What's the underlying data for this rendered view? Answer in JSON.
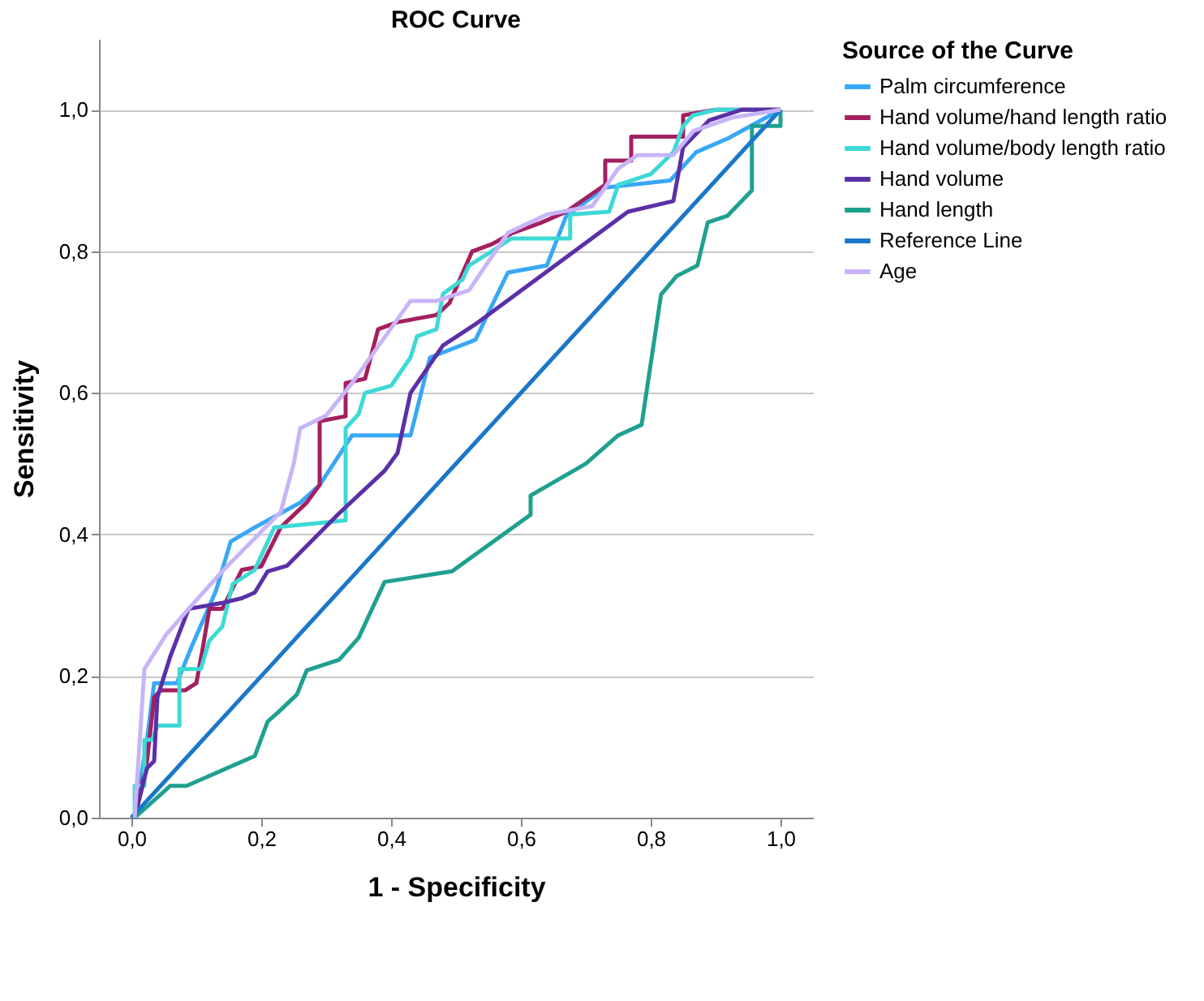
{
  "chart_data": {
    "type": "line",
    "title": "ROC Curve",
    "xlabel": "1 - Specificity",
    "ylabel": "Sensitivity",
    "legend_title": "Source of the Curve",
    "legend": "right",
    "grid": "y",
    "marker": "none",
    "line_style": "solid",
    "xlim": [
      -0.05,
      1.05
    ],
    "ylim": [
      0,
      1.1
    ],
    "xticks": [
      {
        "value": 0,
        "label": "0,0"
      },
      {
        "value": 0.2,
        "label": "0,2"
      },
      {
        "value": 0.4,
        "label": "0,4"
      },
      {
        "value": 0.6,
        "label": "0,6"
      },
      {
        "value": 0.8,
        "label": "0,8"
      },
      {
        "value": 1,
        "label": "1,0"
      }
    ],
    "yticks": [
      {
        "value": 0,
        "label": "0,0"
      },
      {
        "value": 0.2,
        "label": "0,2"
      },
      {
        "value": 0.4,
        "label": "0,4"
      },
      {
        "value": 0.6,
        "label": "0,6"
      },
      {
        "value": 0.8,
        "label": "0,8"
      },
      {
        "value": 1,
        "label": "1,0"
      }
    ],
    "series": [
      {
        "name": "Palm circumference",
        "color": "#38a8f5",
        "x": [
          0.005,
          0.024,
          0.035,
          0.07,
          0.092,
          0.13,
          0.153,
          0.19,
          0.26,
          0.29,
          0.34,
          0.43,
          0.46,
          0.53,
          0.58,
          0.64,
          0.67,
          0.73,
          0.83,
          0.87,
          0.92,
          1.0
        ],
        "values": [
          0,
          0.11,
          0.19,
          0.19,
          0.24,
          0.32,
          0.39,
          0.41,
          0.445,
          0.47,
          0.54,
          0.54,
          0.65,
          0.675,
          0.77,
          0.78,
          0.85,
          0.89,
          0.9,
          0.94,
          0.96,
          1.0
        ]
      },
      {
        "name": "Hand volume/hand length ratio",
        "color": "#a32060",
        "x": [
          0.005,
          0.024,
          0.035,
          0.045,
          0.083,
          0.1,
          0.11,
          0.12,
          0.14,
          0.17,
          0.2,
          0.23,
          0.27,
          0.29,
          0.29,
          0.33,
          0.33,
          0.36,
          0.38,
          0.41,
          0.47,
          0.49,
          0.525,
          0.555,
          0.585,
          0.63,
          0.67,
          0.73,
          0.73,
          0.77,
          0.77,
          0.85,
          0.85,
          0.9,
          1.0
        ],
        "values": [
          0,
          0.08,
          0.17,
          0.18,
          0.18,
          0.19,
          0.24,
          0.295,
          0.295,
          0.35,
          0.355,
          0.41,
          0.445,
          0.47,
          0.56,
          0.567,
          0.614,
          0.62,
          0.69,
          0.7,
          0.71,
          0.727,
          0.8,
          0.81,
          0.825,
          0.84,
          0.856,
          0.894,
          0.928,
          0.928,
          0.962,
          0.962,
          0.992,
          1.0,
          1.0
        ]
      },
      {
        "name": "Hand volume/body length ratio",
        "color": "#3dd9d6",
        "x": [
          0.005,
          0.005,
          0.02,
          0.02,
          0.032,
          0.04,
          0.074,
          0.074,
          0.107,
          0.12,
          0.14,
          0.156,
          0.19,
          0.22,
          0.33,
          0.33,
          0.35,
          0.36,
          0.4,
          0.43,
          0.44,
          0.47,
          0.48,
          0.51,
          0.52,
          0.555,
          0.585,
          0.676,
          0.676,
          0.736,
          0.75,
          0.8,
          0.835,
          0.85,
          0.865,
          0.9,
          1.0
        ],
        "values": [
          0,
          0.045,
          0.045,
          0.11,
          0.11,
          0.13,
          0.13,
          0.21,
          0.21,
          0.25,
          0.27,
          0.33,
          0.35,
          0.41,
          0.42,
          0.55,
          0.57,
          0.6,
          0.61,
          0.65,
          0.68,
          0.69,
          0.74,
          0.76,
          0.78,
          0.8,
          0.818,
          0.818,
          0.852,
          0.856,
          0.894,
          0.909,
          0.94,
          0.977,
          0.992,
          1.0,
          1.0
        ]
      },
      {
        "name": "Hand volume",
        "color": "#5b30a6",
        "x": [
          0.005,
          0.024,
          0.035,
          0.04,
          0.06,
          0.088,
          0.138,
          0.17,
          0.19,
          0.21,
          0.24,
          0.32,
          0.39,
          0.41,
          0.43,
          0.48,
          0.53,
          0.765,
          0.835,
          0.85,
          0.89,
          0.94,
          1.0
        ],
        "values": [
          0,
          0.07,
          0.08,
          0.17,
          0.228,
          0.295,
          0.303,
          0.31,
          0.318,
          0.348,
          0.356,
          0.43,
          0.49,
          0.515,
          0.6,
          0.667,
          0.697,
          0.856,
          0.871,
          0.947,
          0.985,
          1.0,
          1.0
        ]
      },
      {
        "name": "Hand length",
        "color": "#1fa090",
        "x": [
          0.005,
          0.06,
          0.085,
          0.19,
          0.21,
          0.225,
          0.255,
          0.27,
          0.32,
          0.35,
          0.39,
          0.494,
          0.615,
          0.615,
          0.7,
          0.75,
          0.786,
          0.816,
          0.84,
          0.872,
          0.888,
          0.918,
          0.956,
          0.956,
          1.0,
          1.0
        ],
        "values": [
          0,
          0.045,
          0.045,
          0.087,
          0.136,
          0.148,
          0.174,
          0.208,
          0.223,
          0.254,
          0.333,
          0.348,
          0.428,
          0.455,
          0.5,
          0.54,
          0.555,
          0.739,
          0.765,
          0.78,
          0.841,
          0.85,
          0.886,
          0.977,
          0.977,
          1.0
        ]
      },
      {
        "name": "Reference Line",
        "color": "#1a77c9",
        "x": [
          0,
          1
        ],
        "values": [
          0,
          1
        ]
      },
      {
        "name": "Age",
        "color": "#c8b4f7",
        "x": [
          0.005,
          0.02,
          0.053,
          0.088,
          0.14,
          0.23,
          0.25,
          0.26,
          0.3,
          0.34,
          0.43,
          0.47,
          0.52,
          0.58,
          0.64,
          0.71,
          0.75,
          0.78,
          0.835,
          0.866,
          0.926,
          1.0
        ],
        "values": [
          0,
          0.21,
          0.258,
          0.295,
          0.348,
          0.432,
          0.5,
          0.55,
          0.568,
          0.614,
          0.73,
          0.73,
          0.745,
          0.826,
          0.852,
          0.864,
          0.917,
          0.936,
          0.936,
          0.97,
          0.989,
          1.0
        ]
      }
    ]
  }
}
